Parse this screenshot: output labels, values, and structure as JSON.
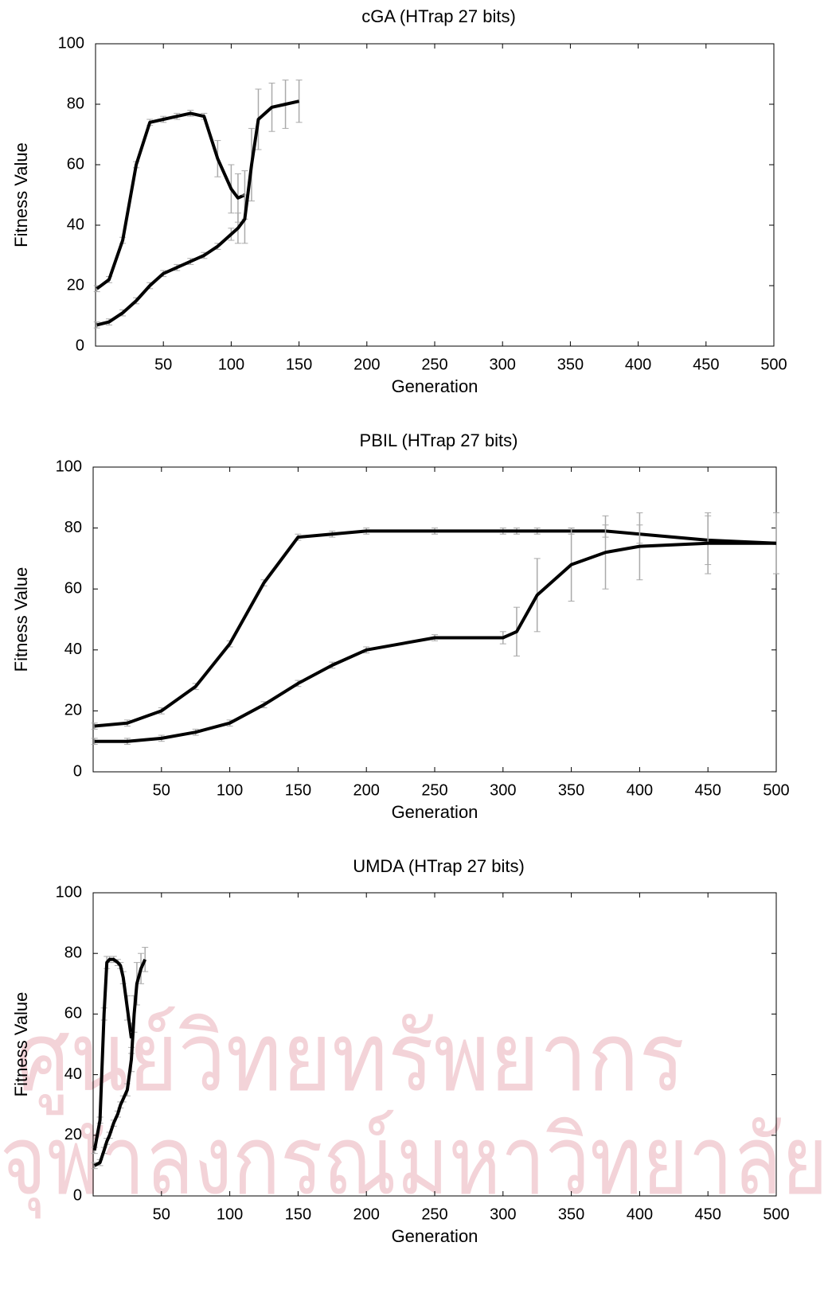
{
  "watermark": [
    "ศูนย์วิทยทรัพยากร",
    "จุฬาลงกรณ์มหาวิทยาลัย"
  ],
  "chart_data": [
    {
      "type": "line",
      "title": "cGA (HTrap 27 bits)",
      "x_label": "Generation",
      "y_label": "Fitness Value",
      "xlim": [
        0,
        500
      ],
      "ylim": [
        0,
        100
      ],
      "xticks": [
        50,
        100,
        150,
        200,
        250,
        300,
        350,
        400,
        450,
        500
      ],
      "yticks": [
        0,
        20,
        40,
        60,
        80,
        100
      ],
      "grid": false,
      "x": [
        1,
        10,
        20,
        30,
        40,
        50,
        60,
        70,
        80,
        90,
        100,
        105,
        110,
        115,
        120,
        130,
        140,
        150
      ],
      "series": [
        {
          "color": "#000000",
          "values": [
            19,
            22,
            35,
            60,
            74,
            75,
            76,
            77,
            76,
            62,
            52,
            49,
            50,
            null,
            null,
            null,
            null,
            null
          ],
          "errors": [
            1,
            1,
            1,
            1,
            1,
            1,
            1,
            1,
            1,
            6,
            8,
            8,
            8,
            null,
            null,
            null,
            null,
            null
          ]
        },
        {
          "color": "#000000",
          "values": [
            7,
            8,
            11,
            15,
            20,
            24,
            26,
            28,
            30,
            33,
            37,
            39,
            42,
            60,
            75,
            79,
            80,
            81
          ],
          "errors": [
            1,
            1,
            1,
            1,
            1,
            1,
            1,
            1,
            1,
            1,
            2,
            5,
            8,
            12,
            10,
            8,
            8,
            7
          ]
        }
      ]
    },
    {
      "type": "line",
      "title": "PBIL (HTrap 27 bits)",
      "x_label": "Generation",
      "y_label": "Fitness Value",
      "xlim": [
        0,
        500
      ],
      "ylim": [
        0,
        100
      ],
      "xticks": [
        50,
        100,
        150,
        200,
        250,
        300,
        350,
        400,
        450,
        500
      ],
      "yticks": [
        0,
        20,
        40,
        60,
        80,
        100
      ],
      "grid": false,
      "x": [
        1,
        25,
        50,
        75,
        100,
        125,
        150,
        175,
        200,
        250,
        300,
        310,
        325,
        350,
        375,
        400,
        450,
        500
      ],
      "series": [
        {
          "color": "#000000",
          "values": [
            15,
            16,
            20,
            28,
            42,
            62,
            77,
            78,
            79,
            79,
            79,
            79,
            79,
            79,
            79,
            78,
            76,
            75
          ],
          "errors": [
            1,
            1,
            1,
            1,
            1,
            1,
            1,
            1,
            1,
            1,
            1,
            1,
            1,
            1,
            2,
            3,
            8,
            10
          ]
        },
        {
          "color": "#000000",
          "values": [
            10,
            10,
            11,
            13,
            16,
            22,
            29,
            35,
            40,
            44,
            44,
            46,
            58,
            68,
            72,
            74,
            75,
            75
          ],
          "errors": [
            1,
            1,
            1,
            1,
            1,
            1,
            1,
            1,
            1,
            1,
            2,
            8,
            12,
            12,
            12,
            11,
            10,
            10
          ]
        }
      ]
    },
    {
      "type": "line",
      "title": "UMDA (HTrap 27 bits)",
      "x_label": "Generation",
      "y_label": "Fitness Value",
      "xlim": [
        0,
        500
      ],
      "ylim": [
        0,
        100
      ],
      "xticks": [
        50,
        100,
        150,
        200,
        250,
        300,
        350,
        400,
        450,
        500
      ],
      "yticks": [
        0,
        20,
        40,
        60,
        80,
        100
      ],
      "grid": false,
      "x": [
        1,
        5,
        8,
        10,
        12,
        15,
        18,
        20,
        22,
        25,
        28,
        30,
        32,
        35,
        38
      ],
      "series": [
        {
          "color": "#000000",
          "values": [
            15,
            25,
            60,
            77,
            78,
            78,
            77,
            76,
            72,
            62,
            52,
            null,
            null,
            null,
            null
          ],
          "errors": [
            1,
            1,
            2,
            2,
            1,
            1,
            1,
            1,
            2,
            4,
            5,
            null,
            null,
            null,
            null
          ]
        },
        {
          "color": "#000000",
          "values": [
            10,
            11,
            15,
            18,
            20,
            24,
            27,
            30,
            32,
            35,
            45,
            60,
            70,
            75,
            78
          ],
          "errors": [
            1,
            1,
            1,
            1,
            1,
            1,
            1,
            1,
            1,
            2,
            4,
            6,
            7,
            5,
            4
          ]
        }
      ]
    }
  ]
}
